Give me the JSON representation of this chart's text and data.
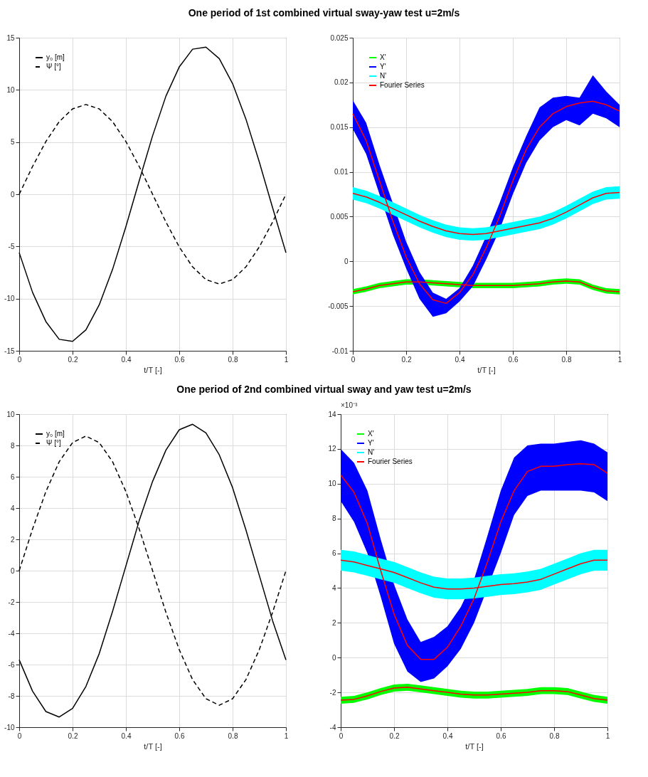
{
  "chart_data": [
    {
      "type": "line",
      "title": "One period of 1st combined virtual sway-yaw test u=2m/s",
      "xlabel": "t/T [-]",
      "x": [
        0,
        0.05,
        0.1,
        0.15,
        0.2,
        0.25,
        0.3,
        0.35,
        0.4,
        0.45,
        0.5,
        0.55,
        0.6,
        0.65,
        0.7,
        0.75,
        0.8,
        0.85,
        0.9,
        0.95,
        1
      ],
      "xlim": [
        0,
        1
      ],
      "xticks": [
        0,
        0.2,
        0.4,
        0.6,
        0.8,
        1
      ],
      "ylim": [
        -15,
        15
      ],
      "yticks": [
        -15,
        -10,
        -5,
        0,
        5,
        10,
        15
      ],
      "grid": true,
      "legend": "top left",
      "series": [
        {
          "name": "y₀ [m]",
          "color": "#000000",
          "line_style": "solid",
          "values": [
            -5.6,
            -9.4,
            -12.2,
            -13.9,
            -14.1,
            -13.0,
            -10.6,
            -7.2,
            -3.1,
            1.3,
            5.6,
            9.4,
            12.2,
            13.9,
            14.1,
            13.0,
            10.6,
            7.2,
            3.1,
            -1.3,
            -5.6
          ]
        },
        {
          "name": "Ψ [°]",
          "color": "#000000",
          "line_style": "dashed",
          "values": [
            0,
            2.66,
            5.05,
            6.96,
            8.18,
            8.6,
            8.18,
            6.96,
            5.05,
            2.66,
            0,
            -2.66,
            -5.05,
            -6.96,
            -8.18,
            -8.6,
            -8.18,
            -6.96,
            -5.05,
            -2.66,
            0
          ]
        }
      ]
    },
    {
      "type": "line",
      "xlabel": "t/T [-]",
      "x": [
        0,
        0.05,
        0.1,
        0.15,
        0.2,
        0.25,
        0.3,
        0.35,
        0.4,
        0.45,
        0.5,
        0.55,
        0.6,
        0.65,
        0.7,
        0.75,
        0.8,
        0.85,
        0.9,
        0.95,
        1
      ],
      "xlim": [
        0,
        1
      ],
      "xticks": [
        0,
        0.2,
        0.4,
        0.6,
        0.8,
        1
      ],
      "ylim": [
        -0.01,
        0.025
      ],
      "yticks": [
        -0.01,
        -0.005,
        0,
        0.005,
        0.01,
        0.015,
        0.02,
        0.025
      ],
      "grid": true,
      "legend": "top left",
      "series": [
        {
          "name": "X'",
          "color": "#00ff00",
          "values": [
            null,
            null,
            null,
            null,
            null,
            null,
            null,
            null,
            null,
            null,
            null,
            null,
            null,
            null,
            null,
            null,
            null,
            null,
            null,
            null,
            null
          ],
          "lower": [
            -0.0037,
            -0.0034,
            -0.003,
            -0.0028,
            -0.0026,
            -0.0026,
            -0.0027,
            -0.0028,
            -0.0029,
            -0.003,
            -0.003,
            -0.003,
            -0.003,
            -0.0029,
            -0.0028,
            -0.0026,
            -0.0025,
            -0.0026,
            -0.0032,
            -0.0036,
            -0.0037
          ],
          "upper": [
            -0.0031,
            -0.0028,
            -0.0024,
            -0.0022,
            -0.002,
            -0.002,
            -0.0021,
            -0.0022,
            -0.0023,
            -0.0024,
            -0.0024,
            -0.0024,
            -0.0024,
            -0.0023,
            -0.0022,
            -0.002,
            -0.0019,
            -0.002,
            -0.0026,
            -0.003,
            -0.0031
          ]
        },
        {
          "name": "Y'",
          "color": "#0000ff",
          "values": [
            null,
            null,
            null,
            null,
            null,
            null,
            null,
            null,
            null,
            null,
            null,
            null,
            null,
            null,
            null,
            null,
            null,
            null,
            null,
            null,
            null
          ],
          "lower": [
            0.0148,
            0.012,
            0.0075,
            0.003,
            -0.0008,
            -0.0042,
            -0.0062,
            -0.0058,
            -0.0045,
            -0.0028,
            0.0002,
            0.0035,
            0.0075,
            0.011,
            0.0135,
            0.015,
            0.0158,
            0.0152,
            0.0165,
            0.016,
            0.015
          ],
          "upper": [
            0.018,
            0.0155,
            0.0108,
            0.0065,
            0.0022,
            -0.0012,
            -0.0035,
            -0.0042,
            -0.003,
            -0.0005,
            0.0028,
            0.0065,
            0.0105,
            0.014,
            0.0172,
            0.0183,
            0.0185,
            0.0183,
            0.0208,
            0.019,
            0.0175
          ]
        },
        {
          "name": "N'",
          "color": "#00ffff",
          "values": [
            null,
            null,
            null,
            null,
            null,
            null,
            null,
            null,
            null,
            null,
            null,
            null,
            null,
            null,
            null,
            null,
            null,
            null,
            null,
            null,
            null
          ],
          "lower": [
            0.0069,
            0.0065,
            0.0059,
            0.0052,
            0.0045,
            0.0038,
            0.0032,
            0.0027,
            0.0024,
            0.0023,
            0.0024,
            0.0027,
            0.003,
            0.0033,
            0.0036,
            0.0041,
            0.0048,
            0.0056,
            0.0064,
            0.0069,
            0.007
          ],
          "upper": [
            0.0083,
            0.0079,
            0.0073,
            0.0066,
            0.0059,
            0.0052,
            0.0046,
            0.0041,
            0.0038,
            0.0037,
            0.0038,
            0.0041,
            0.0044,
            0.0047,
            0.005,
            0.0055,
            0.0062,
            0.007,
            0.0078,
            0.0083,
            0.0084
          ]
        },
        {
          "name": "Fourier Series",
          "type": "line",
          "color": "#ff0000",
          "values": [
            -0.0034,
            -0.0031,
            -0.0027,
            -0.0025,
            -0.0023,
            -0.0023,
            -0.0024,
            -0.0025,
            -0.0026,
            -0.0027,
            -0.0027,
            -0.0027,
            -0.0027,
            -0.0026,
            -0.0025,
            -0.0023,
            -0.0022,
            -0.0023,
            -0.0029,
            -0.0033,
            -0.0034
          ]
        },
        {
          "type": "line",
          "color": "#ff0000",
          "values": [
            0.0165,
            0.0135,
            0.009,
            0.0045,
            0.0005,
            -0.0025,
            -0.0043,
            -0.0047,
            -0.0035,
            -0.0015,
            0.0015,
            0.005,
            0.009,
            0.0125,
            0.015,
            0.0165,
            0.0173,
            0.0177,
            0.0179,
            0.0175,
            0.0168
          ]
        },
        {
          "type": "line",
          "color": "#ff0000",
          "values": [
            0.0076,
            0.0072,
            0.0066,
            0.0059,
            0.0052,
            0.0045,
            0.0039,
            0.0034,
            0.0031,
            0.003,
            0.0031,
            0.0034,
            0.0037,
            0.004,
            0.0043,
            0.0048,
            0.0055,
            0.0063,
            0.0071,
            0.0076,
            0.0077
          ]
        }
      ]
    },
    {
      "type": "line",
      "title": "One period of 2nd combined virtual sway and yaw test u=2m/s",
      "xlabel": "t/T [-]",
      "x": [
        0,
        0.05,
        0.1,
        0.15,
        0.2,
        0.25,
        0.3,
        0.35,
        0.4,
        0.45,
        0.5,
        0.55,
        0.6,
        0.65,
        0.7,
        0.75,
        0.8,
        0.85,
        0.9,
        0.95,
        1
      ],
      "xlim": [
        0,
        1
      ],
      "xticks": [
        0,
        0.2,
        0.4,
        0.6,
        0.8,
        1
      ],
      "ylim": [
        -10,
        10
      ],
      "yticks": [
        -10,
        -8,
        -6,
        -4,
        -2,
        0,
        2,
        4,
        6,
        8,
        10
      ],
      "grid": true,
      "legend": "top left",
      "series": [
        {
          "name": "y₀ [m]",
          "color": "#000000",
          "line_style": "solid",
          "values": [
            -5.7,
            -7.7,
            -9.0,
            -9.35,
            -8.8,
            -7.4,
            -5.3,
            -2.6,
            0.3,
            3.2,
            5.7,
            7.7,
            9.0,
            9.35,
            8.8,
            7.4,
            5.3,
            2.6,
            -0.3,
            -3.2,
            -5.7
          ]
        },
        {
          "name": "Ψ [°]",
          "color": "#000000",
          "line_style": "dashed",
          "values": [
            0,
            2.66,
            5.05,
            6.96,
            8.18,
            8.6,
            8.18,
            6.96,
            5.05,
            2.66,
            0,
            -2.66,
            -5.05,
            -6.96,
            -8.18,
            -8.6,
            -8.18,
            -6.96,
            -5.05,
            -2.66,
            0
          ]
        }
      ]
    },
    {
      "type": "line",
      "xlabel": "t/T [-]",
      "annotations": [
        "×10⁻³"
      ],
      "x": [
        0,
        0.05,
        0.1,
        0.15,
        0.2,
        0.25,
        0.3,
        0.35,
        0.4,
        0.45,
        0.5,
        0.55,
        0.6,
        0.65,
        0.7,
        0.75,
        0.8,
        0.85,
        0.9,
        0.95,
        1
      ],
      "xlim": [
        0,
        1
      ],
      "xticks": [
        0,
        0.2,
        0.4,
        0.6,
        0.8,
        1
      ],
      "ylim": [
        -4,
        14
      ],
      "yticks": [
        -4,
        -2,
        0,
        2,
        4,
        6,
        8,
        10,
        12,
        14
      ],
      "grid": true,
      "legend": "top left",
      "series": [
        {
          "name": "X'",
          "color": "#00ff00",
          "values": [
            null,
            null,
            null,
            null,
            null,
            null,
            null,
            null,
            null,
            null,
            null,
            null,
            null,
            null,
            null,
            null,
            null,
            null,
            null,
            null,
            null
          ],
          "lower": [
            -2.65,
            -2.6,
            -2.4,
            -2.15,
            -1.95,
            -1.9,
            -2.0,
            -2.1,
            -2.2,
            -2.3,
            -2.35,
            -2.35,
            -2.3,
            -2.25,
            -2.2,
            -2.1,
            -2.1,
            -2.15,
            -2.35,
            -2.55,
            -2.65
          ],
          "upper": [
            -2.25,
            -2.2,
            -2.0,
            -1.75,
            -1.55,
            -1.5,
            -1.6,
            -1.7,
            -1.8,
            -1.9,
            -1.95,
            -1.95,
            -1.9,
            -1.85,
            -1.8,
            -1.7,
            -1.7,
            -1.75,
            -1.95,
            -2.15,
            -2.25
          ]
        },
        {
          "name": "Y'",
          "color": "#0000ff",
          "values": [
            null,
            null,
            null,
            null,
            null,
            null,
            null,
            null,
            null,
            null,
            null,
            null,
            null,
            null,
            null,
            null,
            null,
            null,
            null,
            null,
            null
          ],
          "lower": [
            9.0,
            7.8,
            6.0,
            3.5,
            0.8,
            -0.8,
            -1.4,
            -1.2,
            -0.5,
            0.5,
            2.0,
            4.0,
            6.0,
            8.2,
            9.3,
            9.6,
            9.6,
            9.6,
            9.6,
            9.5,
            9.0
          ],
          "upper": [
            12.0,
            11.2,
            9.6,
            6.8,
            4.2,
            2.2,
            0.9,
            1.2,
            1.8,
            2.9,
            4.5,
            7.0,
            9.6,
            11.5,
            12.2,
            12.3,
            12.3,
            12.4,
            12.5,
            12.3,
            11.8
          ]
        },
        {
          "name": "N'",
          "color": "#00ffff",
          "values": [
            null,
            null,
            null,
            null,
            null,
            null,
            null,
            null,
            null,
            null,
            null,
            null,
            null,
            null,
            null,
            null,
            null,
            null,
            null,
            null,
            null
          ],
          "lower": [
            5.0,
            4.9,
            4.7,
            4.5,
            4.3,
            4.0,
            3.7,
            3.45,
            3.35,
            3.35,
            3.4,
            3.5,
            3.6,
            3.65,
            3.75,
            3.9,
            4.2,
            4.5,
            4.8,
            5.0,
            5.0
          ],
          "upper": [
            6.2,
            6.1,
            5.9,
            5.7,
            5.5,
            5.2,
            4.9,
            4.65,
            4.55,
            4.55,
            4.6,
            4.7,
            4.8,
            4.85,
            4.95,
            5.1,
            5.4,
            5.7,
            6.0,
            6.2,
            6.2
          ]
        },
        {
          "name": "Fourier Series",
          "type": "line",
          "color": "#ff0000",
          "values": [
            -2.45,
            -2.4,
            -2.2,
            -1.95,
            -1.75,
            -1.7,
            -1.8,
            -1.9,
            -2.0,
            -2.1,
            -2.15,
            -2.15,
            -2.1,
            -2.05,
            -2.0,
            -1.9,
            -1.9,
            -1.95,
            -2.15,
            -2.35,
            -2.45
          ]
        },
        {
          "type": "line",
          "color": "#ff0000",
          "values": [
            10.5,
            9.5,
            7.7,
            5.0,
            2.5,
            0.7,
            -0.1,
            -0.1,
            0.6,
            1.8,
            3.4,
            5.5,
            7.8,
            9.6,
            10.7,
            11.0,
            11.0,
            11.1,
            11.15,
            11.1,
            10.6
          ]
        },
        {
          "type": "line",
          "color": "#ff0000",
          "values": [
            5.6,
            5.5,
            5.3,
            5.1,
            4.9,
            4.6,
            4.3,
            4.05,
            3.95,
            3.95,
            4.0,
            4.1,
            4.2,
            4.25,
            4.35,
            4.5,
            4.8,
            5.1,
            5.4,
            5.6,
            5.6
          ]
        }
      ]
    }
  ]
}
